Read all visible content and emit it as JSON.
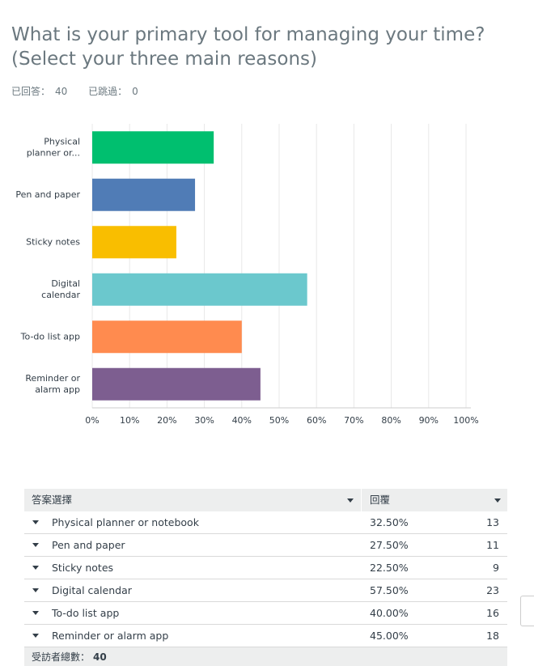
{
  "header": {
    "title": "What is your primary tool for managing your time? (Select your three main reasons)",
    "answered_label": "已回答：",
    "answered": "40",
    "skipped_label": "已跳過：",
    "skipped": "0"
  },
  "chart_data": {
    "type": "bar",
    "orientation": "horizontal",
    "categories": [
      "Physical planner or...",
      "Pen and paper",
      "Sticky notes",
      "Digital calendar",
      "To-do list app",
      "Reminder or alarm app"
    ],
    "values": [
      32.5,
      27.5,
      22.5,
      57.5,
      40,
      45
    ],
    "colors": [
      "#00bf6f",
      "#507cb6",
      "#f9be00",
      "#6bc8cd",
      "#ff8b4f",
      "#7d5e90"
    ],
    "xlim": [
      0,
      100
    ],
    "xticks": [
      {
        "value": 0,
        "label": "0%"
      },
      {
        "value": 10,
        "label": "10%"
      },
      {
        "value": 20,
        "label": "20%"
      },
      {
        "value": 30,
        "label": "30%"
      },
      {
        "value": 40,
        "label": "40%"
      },
      {
        "value": 50,
        "label": "50%"
      },
      {
        "value": 60,
        "label": "60%"
      },
      {
        "value": 70,
        "label": "70%"
      },
      {
        "value": 80,
        "label": "80%"
      },
      {
        "value": 90,
        "label": "90%"
      },
      {
        "value": 100,
        "label": "100%"
      }
    ],
    "grid": true
  },
  "table": {
    "columns": [
      "答案選擇",
      "回覆"
    ],
    "rows": [
      [
        "Physical planner or notebook",
        "32.50%",
        "13"
      ],
      [
        "Pen and paper",
        "27.50%",
        "11"
      ],
      [
        "Sticky notes",
        "22.50%",
        "9"
      ],
      [
        "Digital calendar",
        "57.50%",
        "23"
      ],
      [
        "To-do list app",
        "40.00%",
        "16"
      ],
      [
        "Reminder or alarm app",
        "45.00%",
        "18"
      ]
    ],
    "total_label": "受訪者總數：",
    "total": "40"
  }
}
